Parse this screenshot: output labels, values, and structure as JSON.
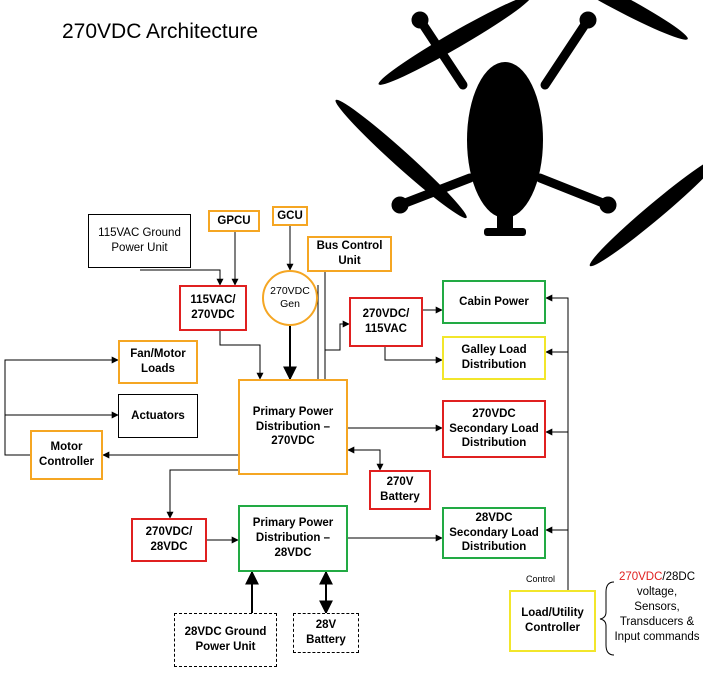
{
  "title": "270VDC Architecture",
  "boxes": {
    "gpu115": "115VAC Ground\nPower Unit",
    "gpcu": "GPCU",
    "gcu": "GCU",
    "bus_control": "Bus Control\nUnit",
    "gen": "270VDC\nGen",
    "conv_115_270": "115VAC/\n270VDC",
    "conv_270_115": "270VDC/\n115VAC",
    "cabin_power": "Cabin Power",
    "galley": "Galley Load\nDistribution",
    "fan_motor": "Fan/Motor\nLoads",
    "actuators": "Actuators",
    "motor_ctrl": "Motor\nController",
    "ppd270": "Primary Power\nDistribution –\n270VDC",
    "sec270": "270VDC\nSecondary Load\nDistribution",
    "battery270": "270V\nBattery",
    "conv_270_28": "270VDC/\n28VDC",
    "ppd28": "Primary Power\nDistribution –\n28VDC",
    "sec28": "28VDC\nSecondary Load\nDistribution",
    "gpu28": "28VDC Ground\nPower Unit",
    "battery28": "28V\nBattery",
    "load_ctrl": "Load/Utility\nController"
  },
  "control_label": "Control",
  "inputs_note": {
    "highlight": "270VDC",
    "rest": "/28DC voltage, Sensors, Transducers & Input commands"
  },
  "colors": {
    "orange": "#f5a623",
    "red": "#e02020",
    "green": "#22aa44",
    "yellow": "#f2e62b"
  },
  "drone_image": "quadcopter-silhouette"
}
